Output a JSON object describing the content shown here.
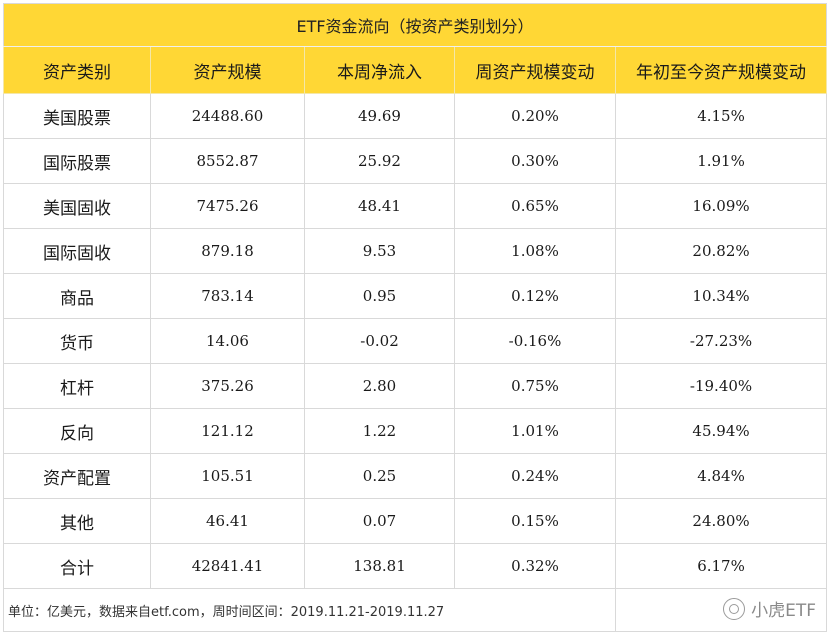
{
  "title": "ETF资金流向（按资产类别划分）",
  "headers": [
    "资产类别",
    "资产规模",
    "本周净流入",
    "周资产规模变动",
    "年初至今资产规模变动"
  ],
  "rows": [
    {
      "category": "美国股票",
      "aum": "24488.60",
      "weekly_inflow": "49.69",
      "weekly_change": "0.20%",
      "ytd_change": "4.15%"
    },
    {
      "category": "国际股票",
      "aum": "8552.87",
      "weekly_inflow": "25.92",
      "weekly_change": "0.30%",
      "ytd_change": "1.91%"
    },
    {
      "category": "美国固收",
      "aum": "7475.26",
      "weekly_inflow": "48.41",
      "weekly_change": "0.65%",
      "ytd_change": "16.09%"
    },
    {
      "category": "国际固收",
      "aum": "879.18",
      "weekly_inflow": "9.53",
      "weekly_change": "1.08%",
      "ytd_change": "20.82%"
    },
    {
      "category": "商品",
      "aum": "783.14",
      "weekly_inflow": "0.95",
      "weekly_change": "0.12%",
      "ytd_change": "10.34%"
    },
    {
      "category": "货币",
      "aum": "14.06",
      "weekly_inflow": "-0.02",
      "weekly_change": "-0.16%",
      "ytd_change": "-27.23%"
    },
    {
      "category": "杠杆",
      "aum": "375.26",
      "weekly_inflow": "2.80",
      "weekly_change": "0.75%",
      "ytd_change": "-19.40%"
    },
    {
      "category": "反向",
      "aum": "121.12",
      "weekly_inflow": "1.22",
      "weekly_change": "1.01%",
      "ytd_change": "45.94%"
    },
    {
      "category": "资产配置",
      "aum": "105.51",
      "weekly_inflow": "0.25",
      "weekly_change": "0.24%",
      "ytd_change": "4.84%"
    },
    {
      "category": "其他",
      "aum": "46.41",
      "weekly_inflow": "0.07",
      "weekly_change": "0.15%",
      "ytd_change": "24.80%"
    },
    {
      "category": "合计",
      "aum": "42841.41",
      "weekly_inflow": "138.81",
      "weekly_change": "0.32%",
      "ytd_change": "6.17%"
    }
  ],
  "footer": "单位：亿美元，数据来自etf.com，周时间区间：2019.11.21-2019.11.27",
  "watermark": "小虎ETF",
  "colors": {
    "header_bg": "#ffd735",
    "border": "#d9d9d9"
  }
}
